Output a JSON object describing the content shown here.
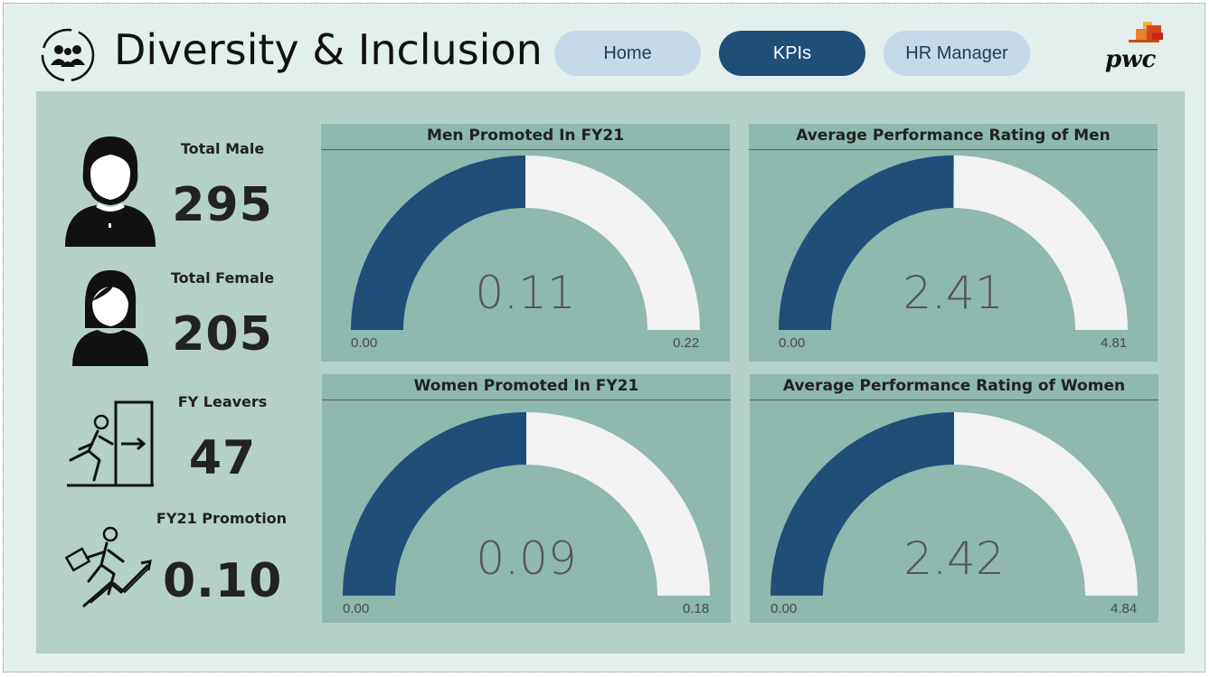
{
  "header": {
    "title": "Diversity & Inclusion",
    "nav": [
      {
        "label": "Home",
        "active": false
      },
      {
        "label": "KPIs",
        "active": true
      },
      {
        "label": "HR Manager",
        "active": false
      }
    ],
    "logo_text": "pwc"
  },
  "colors": {
    "gauge_fill": "#1f4e79",
    "gauge_track": "#f3f2f2",
    "card_bg": "#8fb8ae",
    "panel_bg": "#b5cfc9",
    "nav_active": "#1f4e79",
    "nav_inactive": "#c6d9e8"
  },
  "kpis": [
    {
      "label": "Total Male",
      "value": "295",
      "icon": "male-user-icon"
    },
    {
      "label": "Total Female",
      "value": "205",
      "icon": "female-user-icon"
    },
    {
      "label": "FY Leavers",
      "value": "47",
      "icon": "person-exit-icon"
    },
    {
      "label": "FY21 Promotion",
      "value": "0.10",
      "icon": "career-growth-icon"
    }
  ],
  "chart_data": [
    {
      "type": "gauge",
      "title": "Men Promoted In  FY21",
      "value": 0.11,
      "min": 0.0,
      "max": 0.22,
      "value_label": "0.11",
      "min_label": "0.00",
      "max_label": "0.22"
    },
    {
      "type": "gauge",
      "title": "Average Performance Rating of Men",
      "value": 2.41,
      "min": 0.0,
      "max": 4.81,
      "value_label": "2.41",
      "min_label": "0.00",
      "max_label": "4.81"
    },
    {
      "type": "gauge",
      "title": "Women Promoted In  FY21",
      "value": 0.09,
      "min": 0.0,
      "max": 0.18,
      "value_label": "0.09",
      "min_label": "0.00",
      "max_label": "0.18"
    },
    {
      "type": "gauge",
      "title": "Average Performance Rating of Women",
      "value": 2.42,
      "min": 0.0,
      "max": 4.84,
      "value_label": "2.42",
      "min_label": "0.00",
      "max_label": "4.84"
    }
  ]
}
